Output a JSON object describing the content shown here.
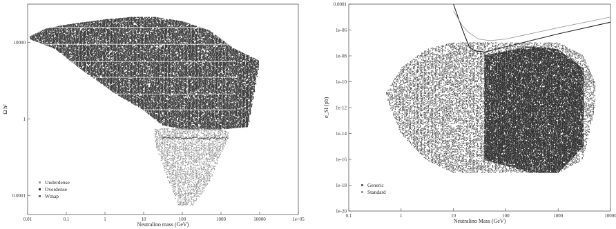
{
  "chart_data": [
    {
      "type": "scatter",
      "xlabel": "Neutralino mass (GeV)",
      "ylabel": "Ω h²",
      "x_scale": "log",
      "y_scale": "log",
      "xlim": [
        0.01,
        100000
      ],
      "ylim": [
        1e-05,
        1000000
      ],
      "x_ticks": [
        {
          "value": 0.01,
          "label": "0.01"
        },
        {
          "value": 0.1,
          "label": "0.1"
        },
        {
          "value": 1,
          "label": "1"
        },
        {
          "value": 10,
          "label": "10"
        },
        {
          "value": 100,
          "label": "100"
        },
        {
          "value": 1000,
          "label": "1000"
        },
        {
          "value": 10000,
          "label": "10000"
        },
        {
          "value": 100000,
          "label": "1e+05"
        }
      ],
      "y_ticks": [
        {
          "value": 0.0001,
          "label": "0.0001"
        },
        {
          "value": 1,
          "label": "1"
        },
        {
          "value": 10000,
          "label": "10000"
        }
      ],
      "legend_position": "bottom-left",
      "legend": [
        {
          "label": "Underdense",
          "color": "#9a9a9a"
        },
        {
          "label": "Overdense",
          "color": "#333333"
        },
        {
          "label": "Wmap",
          "color": "#666666"
        }
      ],
      "series": [
        {
          "name": "Overdense",
          "color": "#3a3a3a",
          "region": "dense point cloud covering masses 0.01–5000 GeV with Ωh² from about 0.3 up to 2e5",
          "envelope_upper": [
            [
              0.012,
              20000
            ],
            [
              0.03,
              50000
            ],
            [
              0.1,
              80000
            ],
            [
              1,
              150000
            ],
            [
              5,
              200000
            ],
            [
              20,
              200000
            ],
            [
              100,
              120000
            ],
            [
              500,
              40000
            ],
            [
              2000,
              5000
            ],
            [
              10000,
              1000
            ]
          ],
          "envelope_lower": [
            [
              0.012,
              15000
            ],
            [
              0.05,
              5000
            ],
            [
              0.3,
              300
            ],
            [
              2,
              20
            ],
            [
              10,
              3
            ],
            [
              30,
              0.5
            ],
            [
              100,
              0.3
            ],
            [
              1000,
              0.3
            ],
            [
              5000,
              0.4
            ],
            [
              10000,
              1000
            ]
          ]
        },
        {
          "name": "Underdense",
          "color": "#8a8a8a",
          "region": "sparser points at masses 20–1500 GeV with Ωh² from about 3e-5 up to 0.3",
          "envelope_upper": [
            [
              20,
              0.3
            ],
            [
              100,
              0.3
            ],
            [
              1000,
              0.3
            ],
            [
              1500,
              0.2
            ]
          ],
          "envelope_lower": [
            [
              20,
              0.05
            ],
            [
              40,
              0.001
            ],
            [
              80,
              3e-05
            ],
            [
              200,
              3e-05
            ],
            [
              500,
              0.0005
            ],
            [
              1500,
              0.1
            ]
          ]
        },
        {
          "name": "Wmap",
          "color": "#555555",
          "region": "thin band at Ωh² about 0.1 for masses 30–1500 GeV"
        }
      ]
    },
    {
      "type": "scatter",
      "xlabel": "Neutralino Mass (GeV)",
      "ylabel": "σ_SI (pb)",
      "x_scale": "log",
      "y_scale": "log",
      "xlim": [
        0.1,
        10000
      ],
      "ylim": [
        1e-20,
        0.0001
      ],
      "x_ticks": [
        {
          "value": 0.1,
          "label": "0.1"
        },
        {
          "value": 1,
          "label": "1"
        },
        {
          "value": 10,
          "label": "10"
        },
        {
          "value": 100,
          "label": "100"
        },
        {
          "value": 1000,
          "label": "1000"
        },
        {
          "value": 10000,
          "label": "10000"
        }
      ],
      "y_ticks": [
        {
          "value": 0.0001,
          "label": "0.0001"
        },
        {
          "value": 1e-06,
          "label": "1e-06"
        },
        {
          "value": 1e-08,
          "label": "1e-08"
        },
        {
          "value": 1e-10,
          "label": "1e-10"
        },
        {
          "value": 1e-12,
          "label": "1e-12"
        },
        {
          "value": 1e-14,
          "label": "1e-14"
        },
        {
          "value": 1e-16,
          "label": "1e-16"
        },
        {
          "value": 1e-18,
          "label": "1e-18"
        },
        {
          "value": 1e-20,
          "label": "1e-20"
        }
      ],
      "legend_position": "bottom-left",
      "legend": [
        {
          "label": "Generic",
          "color": "#666666"
        },
        {
          "label": "Standard",
          "color": "#9a9a9a"
        }
      ],
      "series": [
        {
          "name": "Generic",
          "color": "#4a4a4a",
          "region": "point cloud spanning masses 0.5–5000 GeV and σ_SI from about 1e-18 to 1e-7",
          "envelope_upper": [
            [
              0.5,
              1e-11
            ],
            [
              1,
              1e-09
            ],
            [
              3,
              3e-08
            ],
            [
              10,
              1e-07
            ],
            [
              100,
              1e-07
            ],
            [
              1000,
              1e-07
            ],
            [
              3000,
              1e-08
            ],
            [
              5000,
              1e-10
            ]
          ],
          "envelope_lower": [
            [
              0.5,
              1e-11
            ],
            [
              1,
              1e-14
            ],
            [
              3,
              1e-16
            ],
            [
              10,
              1e-17
            ],
            [
              100,
              1e-17
            ],
            [
              1000,
              1e-17
            ],
            [
              3000,
              1e-16
            ],
            [
              5000,
              1e-12
            ]
          ]
        },
        {
          "name": "Standard",
          "color": "#2e2e2e",
          "region": "denser banded region at masses 40–3000 GeV and σ_SI from about 1e-17 to 1e-8"
        }
      ],
      "curves": [
        {
          "name": "exclusion-limit-1",
          "color": "#222222",
          "points": [
            [
              10,
              0.0001
            ],
            [
              15,
              1e-06
            ],
            [
              20,
              5e-08
            ],
            [
              25,
              2.5e-08
            ],
            [
              40,
              2e-08
            ],
            [
              100,
              5e-08
            ],
            [
              1000,
              5e-07
            ],
            [
              10000,
              4e-06
            ]
          ]
        },
        {
          "name": "exclusion-limit-2",
          "color": "#9a9a9a",
          "points": [
            [
              10,
              3e-05
            ],
            [
              15,
              2e-06
            ],
            [
              20,
              6e-07
            ],
            [
              30,
              2e-07
            ],
            [
              50,
              1.5e-07
            ],
            [
              100,
              2e-07
            ],
            [
              1000,
              1.5e-06
            ],
            [
              10000,
              1e-05
            ]
          ]
        }
      ]
    }
  ]
}
